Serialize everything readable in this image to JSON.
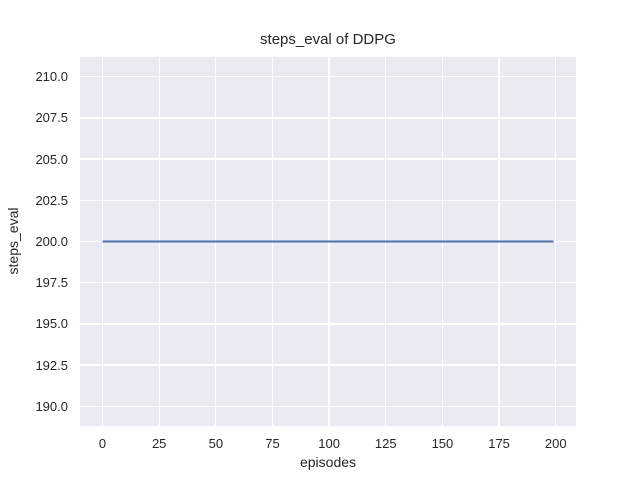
{
  "chart_data": {
    "type": "line",
    "title": "steps_eval of DDPG",
    "xlabel": "episodes",
    "ylabel": "steps_eval",
    "xlim": [
      -9.95,
      208.95
    ],
    "ylim": [
      188.8,
      211.2
    ],
    "grid": true,
    "legend": "none",
    "xticks": {
      "values": [
        0,
        25,
        50,
        75,
        100,
        125,
        150,
        175,
        200
      ],
      "labels": [
        "0",
        "25",
        "50",
        "75",
        "100",
        "125",
        "150",
        "175",
        "200"
      ]
    },
    "yticks": {
      "values": [
        190.0,
        192.5,
        195.0,
        197.5,
        200.0,
        202.5,
        205.0,
        207.5,
        210.0
      ],
      "labels": [
        "190.0",
        "192.5",
        "195.0",
        "197.5",
        "200.0",
        "202.5",
        "205.0",
        "207.5",
        "210.0"
      ]
    },
    "series": [
      {
        "name": "steps_eval",
        "x": [
          0,
          199
        ],
        "y": [
          200,
          200
        ],
        "color": "#4C72B0"
      }
    ],
    "colors": {
      "figure_bg": "#FFFFFF",
      "axes_bg": "#EAEAF2",
      "grid": "#FFFFFF",
      "line": "#4C72B0",
      "text": "#262626"
    }
  }
}
